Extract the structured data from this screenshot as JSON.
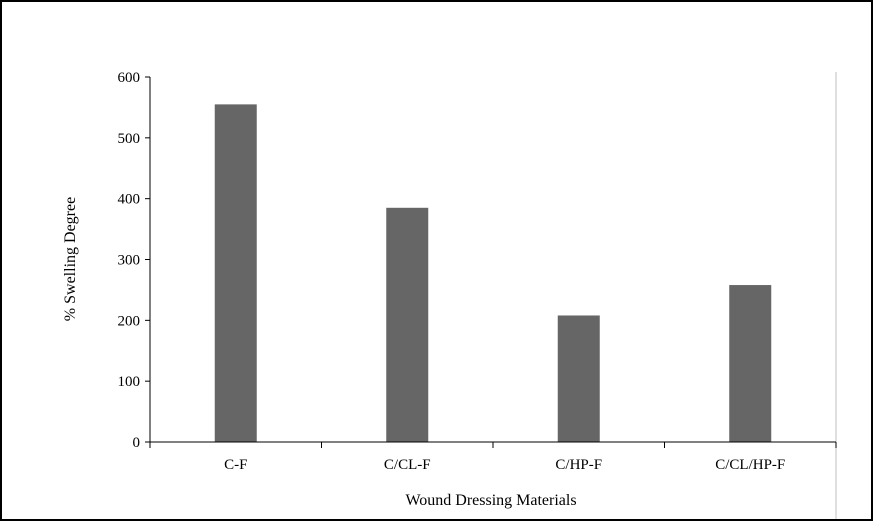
{
  "chart_data": {
    "type": "bar",
    "categories": [
      "C-F",
      "C/CL-F",
      "C/HP-F",
      "C/CL/HP-F"
    ],
    "values": [
      555,
      385,
      208,
      258
    ],
    "title": "",
    "xlabel": "Wound Dressing Materials",
    "ylabel": "% Swelling Degree",
    "ylim": [
      0,
      600
    ],
    "yticks": [
      0,
      100,
      200,
      300,
      400,
      500,
      600
    ],
    "grid": false,
    "legend": "none",
    "colors": {
      "bar": "#666666",
      "axis": "#000000",
      "plot_right_border": "#c0c0c0",
      "frame": "#000000"
    }
  }
}
